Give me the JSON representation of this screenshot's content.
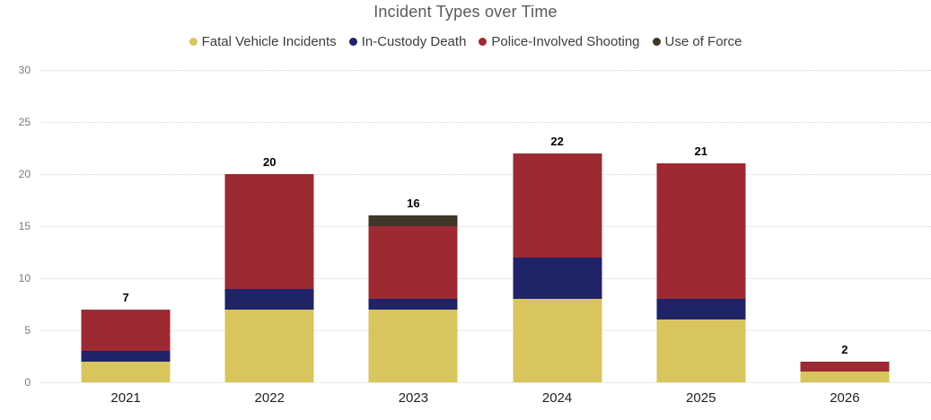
{
  "title": "Incident Types over Time",
  "colors": {
    "background": "#ffffff",
    "title_text": "#5a5a5a",
    "legend_text": "#3d3d3d",
    "y_axis_text": "#7a7a7a",
    "x_axis_text": "#1f1f1f",
    "data_label_text": "#000000",
    "gridline": "#d8d8d8",
    "fatal_vehicle": "#d8c55e",
    "in_custody": "#1f2468",
    "shooting": "#9d2a33",
    "use_of_force": "#413527"
  },
  "chart_data": {
    "type": "bar",
    "stacked": true,
    "title": "Incident Types over Time",
    "categories": [
      "2021",
      "2022",
      "2023",
      "2024",
      "2025",
      "2026"
    ],
    "series": [
      {
        "name": "Fatal Vehicle Incidents",
        "color": "#d8c55e",
        "values": [
          2,
          7,
          7,
          8,
          6,
          1
        ]
      },
      {
        "name": "In-Custody Death",
        "color": "#1f2468",
        "values": [
          1,
          2,
          1,
          4,
          2,
          0
        ]
      },
      {
        "name": "Police-Involved Shooting",
        "color": "#9d2a33",
        "values": [
          4,
          11,
          7,
          10,
          13,
          1
        ]
      },
      {
        "name": "Use of Force",
        "color": "#413527",
        "values": [
          0,
          0,
          1,
          0,
          0,
          0
        ]
      }
    ],
    "totals": [
      7,
      20,
      16,
      22,
      21,
      2
    ],
    "xlabel": "",
    "ylabel": "",
    "ylim": [
      0,
      30
    ],
    "yticks": [
      0,
      5,
      10,
      15,
      20,
      25,
      30
    ],
    "grid": true,
    "gridline_style": "dotted",
    "legend_position": "top"
  }
}
